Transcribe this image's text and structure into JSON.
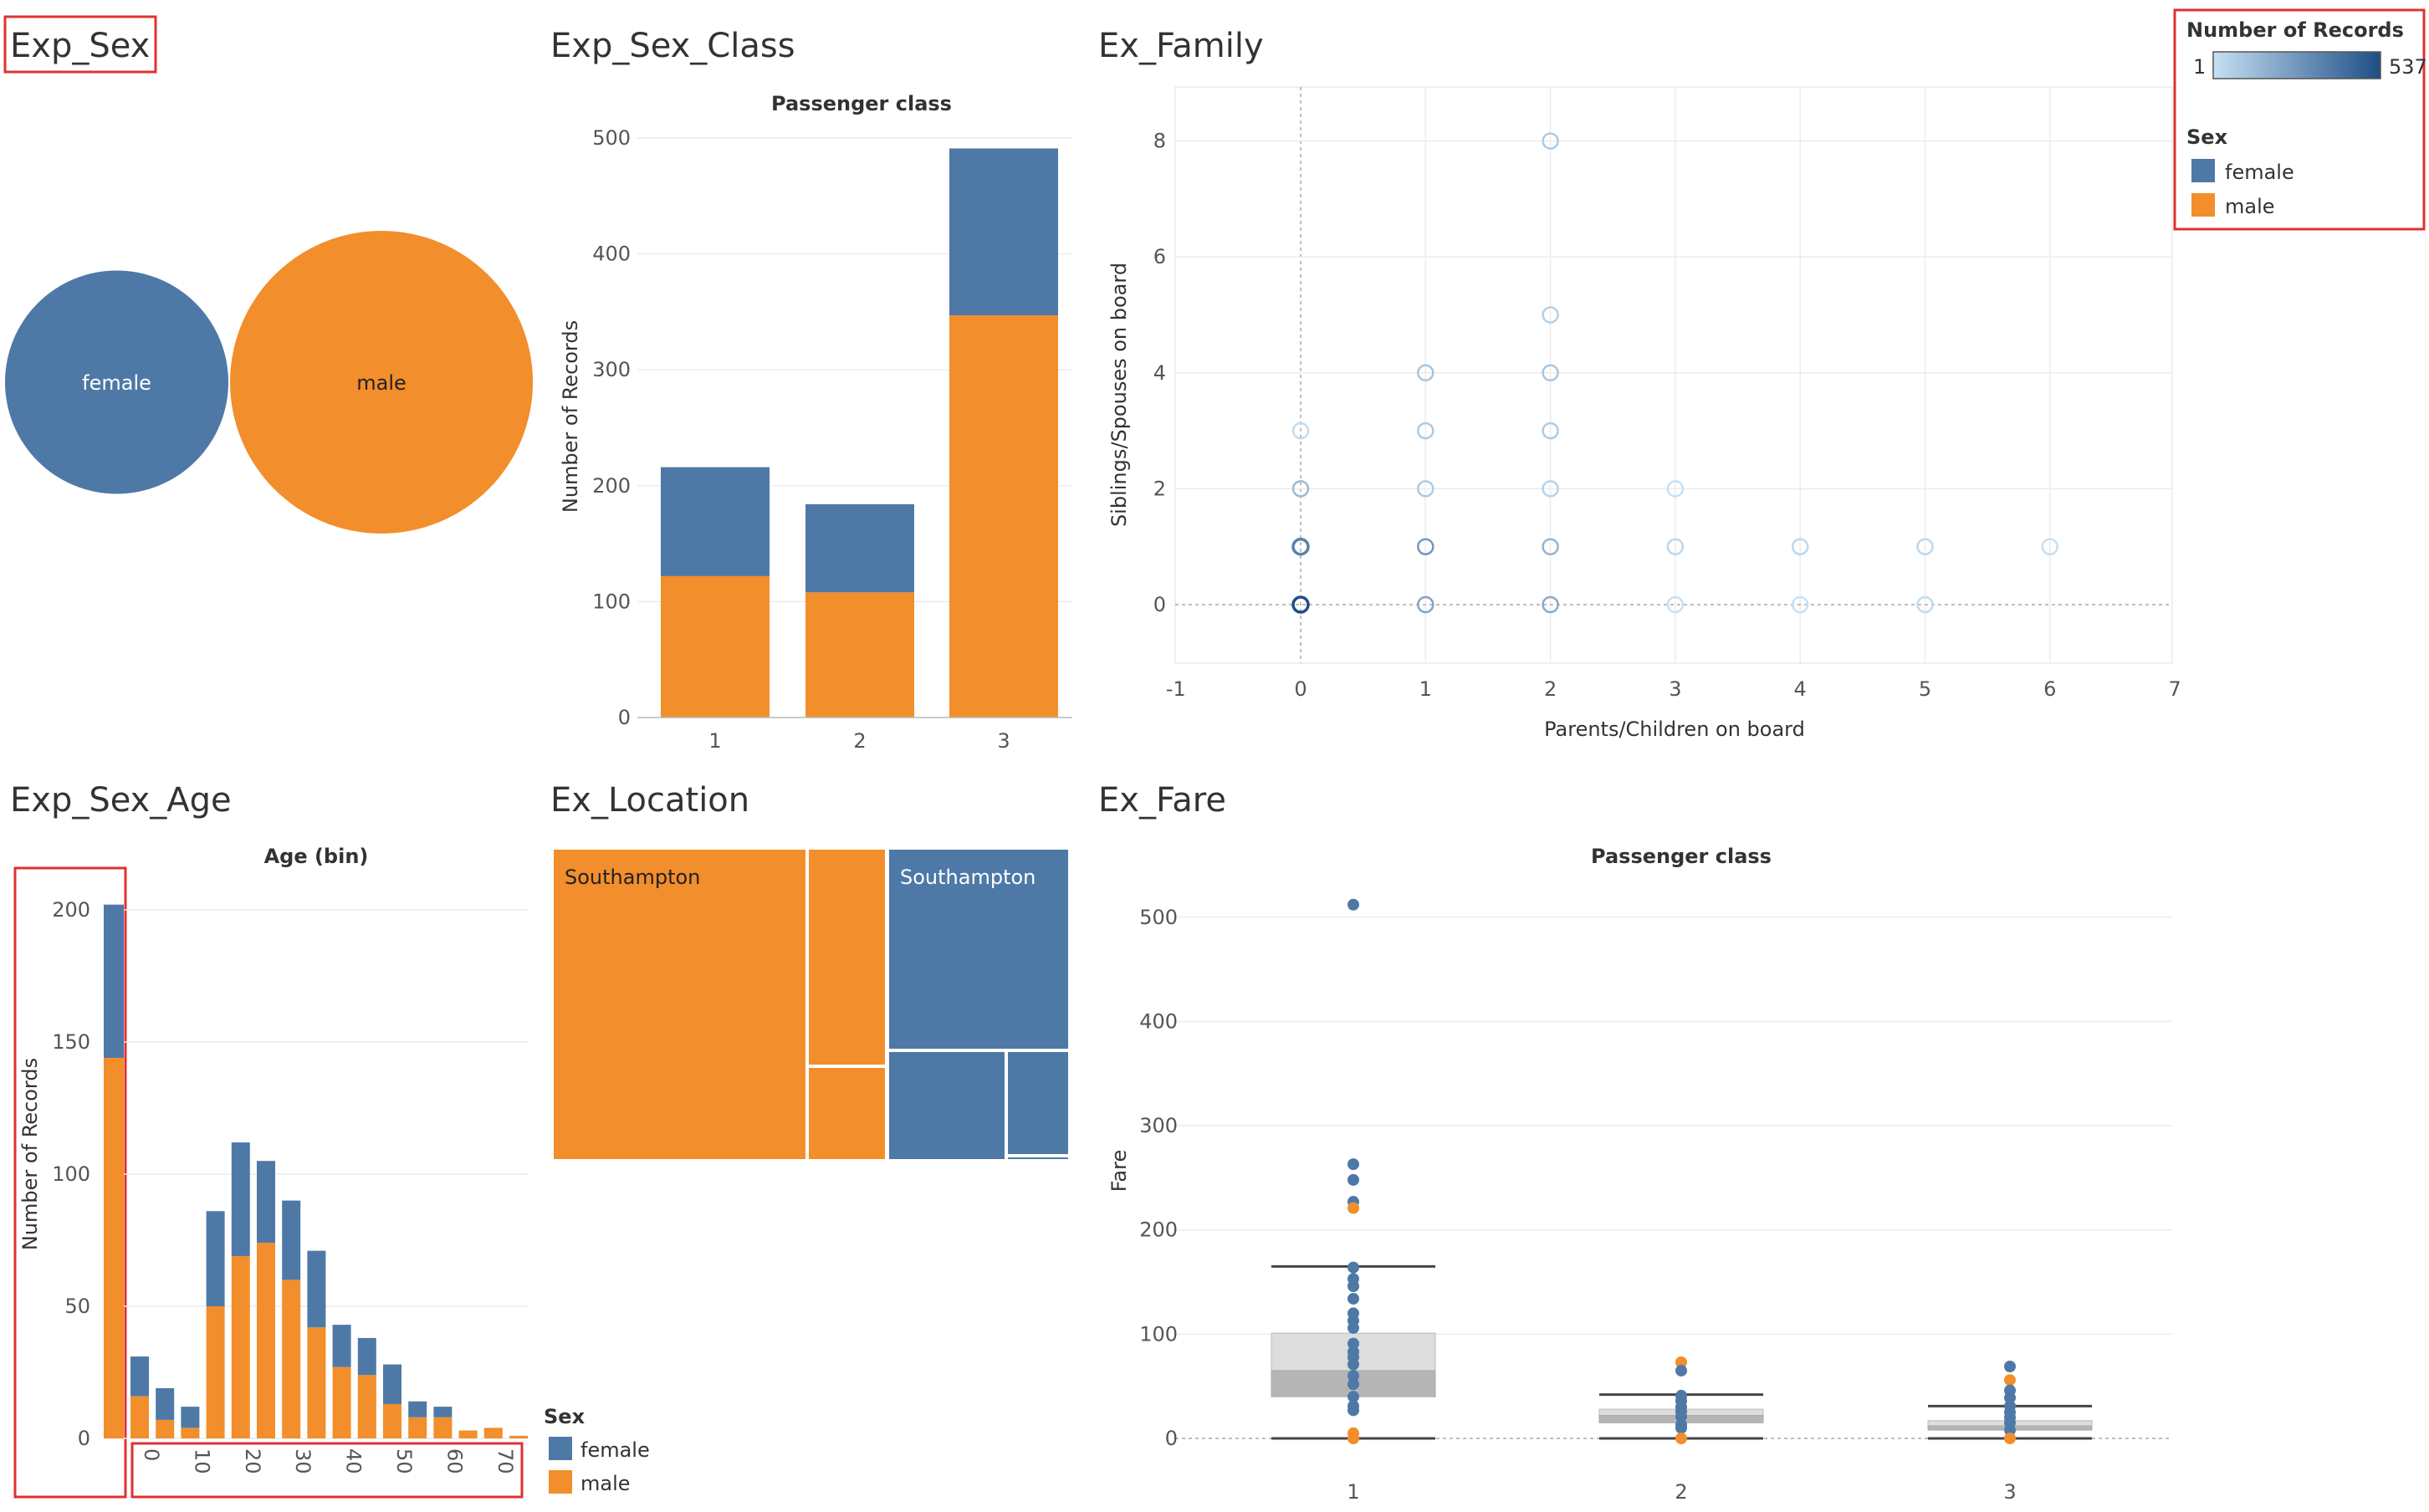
{
  "colors": {
    "female": "#4e79a7",
    "male": "#f28e2b",
    "highlight": "#e03131",
    "grid": "#ececec",
    "axis": "#666666",
    "title": "#333333",
    "seq_low": "#c6e0f3",
    "seq_high": "#1f4e86"
  },
  "sheets": {
    "sex": "Exp_Sex",
    "sex_class": "Exp_Sex_Class",
    "family": "Ex_Family",
    "sex_age": "Exp_Sex_Age",
    "location": "Ex_Location",
    "fare": "Ex_Fare"
  },
  "legend_records": {
    "title": "Number of Records",
    "min": "1",
    "max": "537"
  },
  "legend_sex": {
    "title": "Sex",
    "items": [
      "female",
      "male"
    ]
  },
  "legend_sex_bottom": {
    "title": "Sex",
    "items": [
      "female",
      "male"
    ]
  },
  "chart_data": [
    {
      "id": "exp_sex",
      "type": "bubble",
      "title": "Exp_Sex",
      "categories": [
        "female",
        "male"
      ],
      "values": [
        314,
        577
      ]
    },
    {
      "id": "exp_sex_class",
      "type": "bar",
      "stacked": true,
      "title": "Exp_Sex_Class",
      "header": "Passenger class",
      "xlabel": "",
      "ylabel": "Number of Records",
      "categories": [
        "1",
        "2",
        "3"
      ],
      "ylim": [
        0,
        520
      ],
      "yticks": [
        0,
        100,
        200,
        300,
        400,
        500
      ],
      "series": [
        {
          "name": "male",
          "values": [
            122,
            108,
            347
          ]
        },
        {
          "name": "female",
          "values": [
            94,
            76,
            144
          ]
        }
      ]
    },
    {
      "id": "ex_family",
      "type": "scatter",
      "title": "Ex_Family",
      "xlabel": "Parents/Children on board",
      "ylabel": "Siblings/Spouses on board",
      "xlim": [
        -1,
        7
      ],
      "ylim": [
        -1,
        9
      ],
      "xticks": [
        -1,
        0,
        1,
        2,
        3,
        4,
        5,
        6,
        7
      ],
      "yticks": [
        0,
        2,
        4,
        6,
        8
      ],
      "points": [
        {
          "x": 0,
          "y": 0,
          "n": 537
        },
        {
          "x": 0,
          "y": 1,
          "n": 123
        },
        {
          "x": 0,
          "y": 2,
          "n": 16
        },
        {
          "x": 0,
          "y": 3,
          "n": 2
        },
        {
          "x": 1,
          "y": 0,
          "n": 38
        },
        {
          "x": 1,
          "y": 1,
          "n": 57
        },
        {
          "x": 1,
          "y": 2,
          "n": 7
        },
        {
          "x": 1,
          "y": 3,
          "n": 7
        },
        {
          "x": 1,
          "y": 4,
          "n": 9
        },
        {
          "x": 2,
          "y": 0,
          "n": 29
        },
        {
          "x": 2,
          "y": 1,
          "n": 19
        },
        {
          "x": 2,
          "y": 2,
          "n": 4
        },
        {
          "x": 2,
          "y": 3,
          "n": 7
        },
        {
          "x": 2,
          "y": 4,
          "n": 9
        },
        {
          "x": 2,
          "y": 5,
          "n": 5
        },
        {
          "x": 2,
          "y": 8,
          "n": 7
        },
        {
          "x": 3,
          "y": 0,
          "n": 1
        },
        {
          "x": 3,
          "y": 1,
          "n": 3
        },
        {
          "x": 3,
          "y": 2,
          "n": 1
        },
        {
          "x": 4,
          "y": 0,
          "n": 1
        },
        {
          "x": 4,
          "y": 1,
          "n": 3
        },
        {
          "x": 5,
          "y": 0,
          "n": 2
        },
        {
          "x": 5,
          "y": 1,
          "n": 3
        },
        {
          "x": 6,
          "y": 1,
          "n": 1
        }
      ]
    },
    {
      "id": "exp_sex_age",
      "type": "bar",
      "stacked": true,
      "title": "Exp_Sex_Age",
      "header": "Age (bin)",
      "ylabel": "Number of Records",
      "null_bin": {
        "male": 144,
        "female": 58
      },
      "bins": [
        0,
        5,
        10,
        15,
        20,
        25,
        30,
        35,
        40,
        45,
        50,
        55,
        60,
        65,
        70,
        75
      ],
      "tick_labels": [
        0,
        10,
        20,
        30,
        40,
        50,
        60,
        70
      ],
      "ylim": [
        0,
        210
      ],
      "yticks": [
        0,
        50,
        100,
        150,
        200
      ],
      "series": [
        {
          "name": "male",
          "values": [
            16,
            7,
            4,
            50,
            69,
            74,
            60,
            42,
            27,
            24,
            13,
            8,
            8,
            3,
            4,
            1
          ]
        },
        {
          "name": "female",
          "values": [
            15,
            12,
            8,
            36,
            43,
            31,
            30,
            29,
            16,
            14,
            15,
            6,
            4,
            0,
            0,
            0
          ]
        }
      ]
    },
    {
      "id": "ex_location",
      "type": "treemap",
      "title": "Ex_Location",
      "rects": [
        {
          "sex": "male",
          "label": "Southampton"
        },
        {
          "sex": "male",
          "label": ""
        },
        {
          "sex": "male",
          "label": ""
        },
        {
          "sex": "female",
          "label": "Southampton"
        },
        {
          "sex": "female",
          "label": ""
        },
        {
          "sex": "female",
          "label": ""
        },
        {
          "sex": "female",
          "label": ""
        }
      ]
    },
    {
      "id": "ex_fare",
      "type": "box",
      "title": "Ex_Fare",
      "header": "Passenger class",
      "ylabel": "Fare",
      "categories": [
        "1",
        "2",
        "3"
      ],
      "ylim": [
        -10,
        530
      ],
      "yticks": [
        0,
        100,
        200,
        300,
        400,
        500
      ],
      "boxes": [
        {
          "whisker_low": 0,
          "q1": 40,
          "median": 65,
          "q3": 101,
          "whisker_high": 165
        },
        {
          "whisker_low": 0,
          "q1": 15,
          "median": 22,
          "q3": 28,
          "whisker_high": 42
        },
        {
          "whisker_low": 0,
          "q1": 8,
          "median": 12,
          "q3": 17,
          "whisker_high": 31
        }
      ],
      "points": [
        [
          {
            "y": 512,
            "sex": "female"
          },
          {
            "y": 263,
            "sex": "female"
          },
          {
            "y": 248,
            "sex": "female"
          },
          {
            "y": 227,
            "sex": "female"
          },
          {
            "y": 221,
            "sex": "male"
          },
          {
            "y": 164,
            "sex": "female"
          },
          {
            "y": 153,
            "sex": "female"
          },
          {
            "y": 146,
            "sex": "female"
          },
          {
            "y": 134,
            "sex": "female"
          },
          {
            "y": 120,
            "sex": "female"
          },
          {
            "y": 113,
            "sex": "female"
          },
          {
            "y": 106,
            "sex": "female"
          },
          {
            "y": 91,
            "sex": "female"
          },
          {
            "y": 83,
            "sex": "female"
          },
          {
            "y": 78,
            "sex": "female"
          },
          {
            "y": 71,
            "sex": "female"
          },
          {
            "y": 60,
            "sex": "female"
          },
          {
            "y": 52,
            "sex": "female"
          },
          {
            "y": 40,
            "sex": "female"
          },
          {
            "y": 31,
            "sex": "female"
          },
          {
            "y": 27,
            "sex": "female"
          },
          {
            "y": 5,
            "sex": "male"
          },
          {
            "y": 0,
            "sex": "male"
          }
        ],
        [
          {
            "y": 73,
            "sex": "male"
          },
          {
            "y": 65,
            "sex": "female"
          },
          {
            "y": 41,
            "sex": "female"
          },
          {
            "y": 36,
            "sex": "female"
          },
          {
            "y": 30,
            "sex": "female"
          },
          {
            "y": 26,
            "sex": "female"
          },
          {
            "y": 21,
            "sex": "female"
          },
          {
            "y": 13,
            "sex": "female"
          },
          {
            "y": 10,
            "sex": "female"
          },
          {
            "y": 0,
            "sex": "male"
          }
        ],
        [
          {
            "y": 69,
            "sex": "female"
          },
          {
            "y": 56,
            "sex": "male"
          },
          {
            "y": 46,
            "sex": "female"
          },
          {
            "y": 39,
            "sex": "female"
          },
          {
            "y": 31,
            "sex": "female"
          },
          {
            "y": 25,
            "sex": "female"
          },
          {
            "y": 20,
            "sex": "female"
          },
          {
            "y": 15,
            "sex": "female"
          },
          {
            "y": 8,
            "sex": "female"
          },
          {
            "y": 0,
            "sex": "male"
          }
        ]
      ]
    }
  ]
}
